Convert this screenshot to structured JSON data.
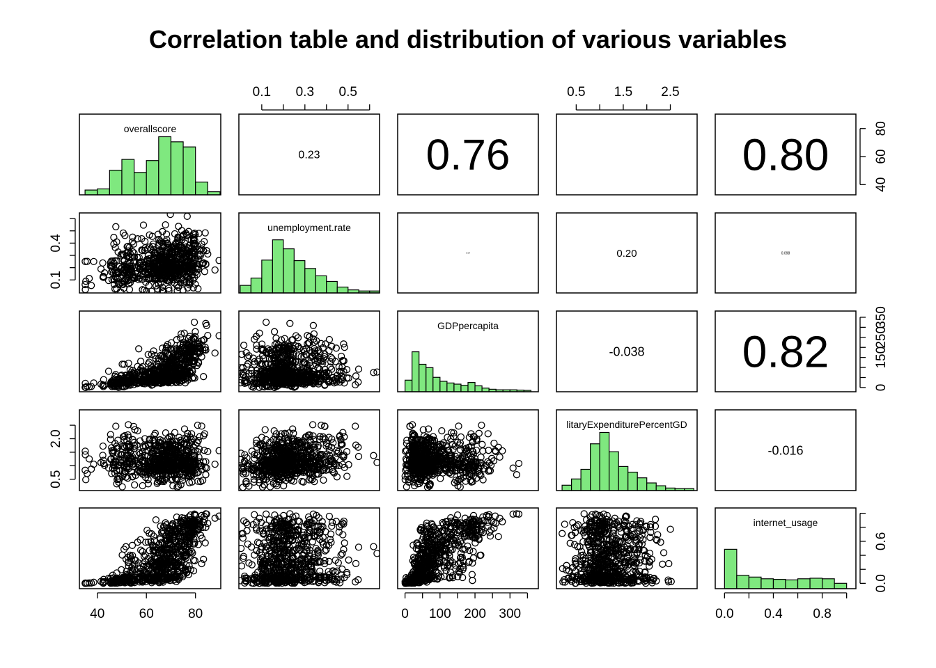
{
  "chart_data": {
    "type": "scatter-matrix",
    "title": "Correlation table and distribution of various variables",
    "variables": [
      "overallscore",
      "unemployment.rate",
      "GDPpercapita",
      "MilitaryExpenditurePercentGDP",
      "internet_usage"
    ],
    "diagonal_labels": [
      "overallscore",
      "unemployment.rate",
      "GDPpercapita",
      "litaryExpenditurePercentGD",
      "internet_usage"
    ],
    "hist_color": "#7fe87f",
    "axes": [
      {
        "range": [
          35,
          88
        ],
        "ticks": [
          40,
          60,
          80
        ],
        "tick_labels": [
          "40",
          "60",
          "80"
        ]
      },
      {
        "range": [
          0.02,
          0.62
        ],
        "ticks": [
          0.1,
          0.2,
          0.3,
          0.4,
          0.5,
          0.6
        ],
        "tick_labels": [
          "0.1",
          "",
          "0.3",
          "",
          "0.5",
          ""
        ],
        "left_tick_labels": [
          "0.1",
          "",
          "",
          "0.4",
          "",
          ""
        ]
      },
      {
        "range": [
          -5,
          365
        ],
        "ticks": [
          0,
          50,
          100,
          150,
          200,
          250,
          300,
          350
        ],
        "tick_labels": [
          "0",
          "",
          "100",
          "",
          "200",
          "",
          "300",
          ""
        ],
        "right_tick_labels": [
          "0",
          "",
          "",
          "150",
          "",
          "250",
          "",
          "350"
        ]
      },
      {
        "range": [
          0.2,
          2.95
        ],
        "ticks": [
          0.5,
          1.0,
          1.5,
          2.0,
          2.5
        ],
        "tick_labels": [
          "0.5",
          "",
          "1.5",
          "",
          "2.5"
        ],
        "left_tick_labels": [
          "0.5",
          "",
          "",
          "2.0",
          ""
        ]
      },
      {
        "range": [
          -0.03,
          1.03
        ],
        "ticks": [
          0.0,
          0.2,
          0.4,
          0.6,
          0.8,
          1.0
        ],
        "tick_labels": [
          "0.0",
          "",
          "0.4",
          "",
          "0.8",
          ""
        ],
        "right_tick_labels": [
          "0.0",
          "",
          "",
          "0.6",
          "",
          ""
        ]
      }
    ],
    "correlations": [
      {
        "row": 0,
        "col": 1,
        "label": "0.23",
        "size": 16
      },
      {
        "row": 0,
        "col": 2,
        "label": "0.76",
        "size": 62
      },
      {
        "row": 0,
        "col": 3,
        "label": "",
        "size": 4
      },
      {
        "row": 0,
        "col": 4,
        "label": "0.80",
        "size": 64
      },
      {
        "row": 1,
        "col": 2,
        "label": "0.04",
        "size": 3
      },
      {
        "row": 1,
        "col": 3,
        "label": "0.20",
        "size": 15
      },
      {
        "row": 1,
        "col": 4,
        "label": "0.098",
        "size": 5
      },
      {
        "row": 2,
        "col": 3,
        "label": "-0.038",
        "size": 18
      },
      {
        "row": 2,
        "col": 4,
        "label": "0.82",
        "size": 64
      },
      {
        "row": 3,
        "col": 4,
        "label": "-0.016",
        "size": 18
      }
    ],
    "histograms": [
      {
        "edges": [
          35,
          40,
          45,
          50,
          55,
          60,
          65,
          70,
          75,
          80,
          85,
          90
        ],
        "heights": [
          0.06,
          0.08,
          0.41,
          0.6,
          0.37,
          0.58,
          1.0,
          0.91,
          0.82,
          0.2,
          0.03
        ]
      },
      {
        "edges": [
          0.0,
          0.05,
          0.1,
          0.15,
          0.2,
          0.25,
          0.3,
          0.35,
          0.4,
          0.45,
          0.5,
          0.55,
          0.6,
          0.65
        ],
        "heights": [
          0.11,
          0.24,
          0.56,
          0.92,
          0.76,
          0.55,
          0.41,
          0.28,
          0.18,
          0.08,
          0.03,
          0.01,
          0.01
        ]
      },
      {
        "edges": [
          0,
          20,
          40,
          60,
          80,
          100,
          120,
          140,
          160,
          180,
          200,
          220,
          240,
          260,
          280,
          300,
          320,
          340,
          360
        ],
        "heights": [
          0.18,
          0.68,
          0.46,
          0.4,
          0.23,
          0.16,
          0.13,
          0.11,
          0.09,
          0.14,
          0.08,
          0.04,
          0.02,
          0.01,
          0.01,
          0.01,
          0.005,
          0.0
        ]
      },
      {
        "edges": [
          0.2,
          0.4,
          0.6,
          0.8,
          1.0,
          1.2,
          1.4,
          1.6,
          1.8,
          2.0,
          2.2,
          2.4,
          2.6,
          2.8,
          3.0
        ],
        "heights": [
          0.07,
          0.18,
          0.35,
          0.8,
          1.0,
          0.66,
          0.4,
          0.3,
          0.2,
          0.11,
          0.06,
          0.02,
          0.01,
          0.01
        ]
      },
      {
        "edges": [
          0.0,
          0.1,
          0.2,
          0.3,
          0.4,
          0.5,
          0.6,
          0.7,
          0.8,
          0.9,
          1.0
        ],
        "heights": [
          0.67,
          0.21,
          0.18,
          0.15,
          0.14,
          0.13,
          0.15,
          0.16,
          0.15,
          0.07
        ]
      }
    ],
    "ylim_hist": [
      0,
      1
    ],
    "grid": false,
    "legend": "none"
  }
}
